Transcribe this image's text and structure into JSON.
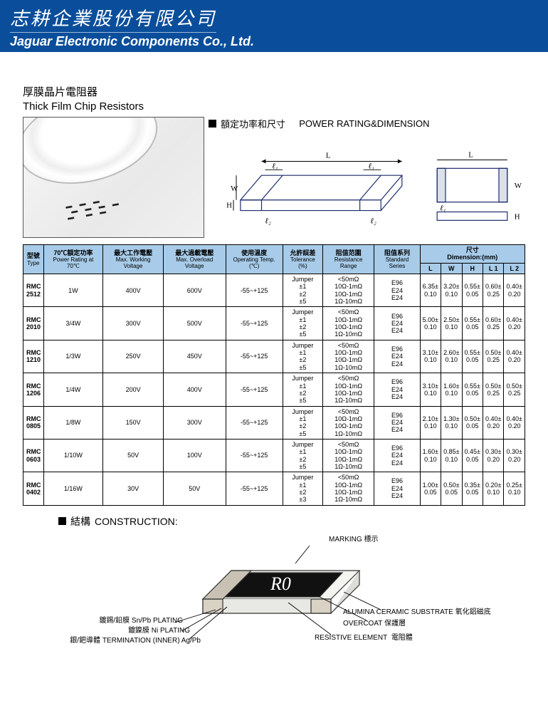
{
  "header": {
    "cn": "志耕企業股份有限公司",
    "en": "Jaguar Electronic Components Co., Ltd."
  },
  "product": {
    "title_cn": "厚膜晶片電阻器",
    "title_en": "Thick Film Chip Resistors"
  },
  "section_power": {
    "marker": "■",
    "cn": "額定功率和尺寸",
    "en": "POWER RATING&DIMENSION"
  },
  "section_construction": {
    "marker": "■",
    "cn": "結構",
    "en": "CONSTRUCTION:"
  },
  "dim_diagram": {
    "labels": {
      "L": "L",
      "W": "W",
      "H": "H",
      "l1": "ℓ₁",
      "l2": "ℓ₂"
    },
    "stroke": "#1a2a6c"
  },
  "table": {
    "headers": {
      "type": {
        "cn": "型號",
        "en": "Type"
      },
      "power": {
        "cn": "70℃額定功率",
        "en": "Power Rating at 70℃"
      },
      "maxwork": {
        "cn": "最大工作電壓",
        "en": "Max. Working Voltage"
      },
      "maxover": {
        "cn": "最大過載電壓",
        "en": "Max. Overload Voltage"
      },
      "temp": {
        "cn": "使用溫度",
        "en": "Operating Temp.(℃)"
      },
      "tol": {
        "cn": "允許誤差",
        "en": "Tolerance (%)"
      },
      "range": {
        "cn": "阻值范圍",
        "en": "Resistance Range"
      },
      "series": {
        "cn": "阻值系列",
        "en": "Standard Series"
      },
      "dim": {
        "cn": "尺寸",
        "en": "Dimension:(mm)"
      },
      "L": "L",
      "W": "W",
      "H": "H",
      "L1": "L 1",
      "L2": "L 2"
    },
    "tol_common": "Jumper\n±1\n±2\n±5",
    "range_common": "<50mΩ\n10Ω-1mΩ\n10Ω-1mΩ\n1Ω-10mΩ",
    "series_common": "E96\nE24\nE24",
    "rows": [
      {
        "type": "RMC 2512",
        "power": "1W",
        "mw": "400V",
        "mo": "600V",
        "temp": "-55~+125",
        "L": "6.35±\n0.10",
        "W": "3.20±\n0.10",
        "H": "0.55±\n0.05",
        "L1": "0.60±\n0.25",
        "L2": "0.40±\n0.20"
      },
      {
        "type": "RMC 2010",
        "power": "3/4W",
        "mw": "300V",
        "mo": "500V",
        "temp": "-55~+125",
        "L": "5.00±\n0.10",
        "W": "2.50±\n0.10",
        "H": "0.55±\n0.05",
        "L1": "0.60±\n0.25",
        "L2": "0.40±\n0.20"
      },
      {
        "type": "RMC 1210",
        "power": "1/3W",
        "mw": "250V",
        "mo": "450V",
        "temp": "-55~+125",
        "L": "3.10±\n0.10",
        "W": "2.60±\n0.10",
        "H": "0.55±\n0.05",
        "L1": "0.50±\n0.25",
        "L2": "0.40±\n0.20"
      },
      {
        "type": "RMC 1206",
        "power": "1/4W",
        "mw": "200V",
        "mo": "400V",
        "temp": "-55~+125",
        "L": "3.10±\n0.10",
        "W": "1.60±\n0.10",
        "H": "0.55±\n0.05",
        "L1": "0.50±\n0.25",
        "L2": "0.50±\n0.25"
      },
      {
        "type": "RMC 0805",
        "power": "1/8W",
        "mw": "150V",
        "mo": "300V",
        "temp": "-55~+125",
        "L": "2.10±\n0.10",
        "W": "1.30±\n0.10",
        "H": "0.50±\n0.05",
        "L1": "0.40±\n0.20",
        "L2": "0.40±\n0.20"
      },
      {
        "type": "RMC 0603",
        "power": "1/10W",
        "mw": "50V",
        "mo": "100V",
        "temp": "-55~+125",
        "L": "1.60±\n0.10",
        "W": "0.85±\n0.10",
        "H": "0.45±\n0.05",
        "L1": "0.30±\n0.20",
        "L2": "0.30±\n0.20"
      },
      {
        "type": "RMC 0402",
        "power": "1/16W",
        "mw": "30V",
        "mo": "50V",
        "temp": "-55~+125",
        "tol": "Jumper\n±1\n±2\n±3",
        "L": "1.00±\n0.05",
        "W": "0.50±\n0.05",
        "H": "0.35±\n0.05",
        "L1": "0.20±\n0.10",
        "L2": "0.25±\n0.10"
      }
    ]
  },
  "construction_labels": {
    "marking": {
      "en": "MARKING",
      "cn": "標示"
    },
    "snpb": {
      "cn": "鍍錫/鉛膜",
      "en": "Sn/Pb PLATING"
    },
    "ni": {
      "cn": "鍍鎳膜",
      "en": "Ni PLATING"
    },
    "term": {
      "cn": "銀/鈀導體",
      "en": "TERMINATION (INNER) Ag/Pb"
    },
    "alumina": {
      "en": "ALUMINA CERAMIC SUBSTRATE",
      "cn": "氧化鋁磁底"
    },
    "overcoat": {
      "en": "OVERCOAT",
      "cn": "保護層"
    },
    "resistive": {
      "en": "RESISTIVE ELEMENT",
      "cn": "電阻體"
    }
  },
  "colors": {
    "header_bg": "#0a4e9b",
    "table_header_bg": "#a7cbe8",
    "border": "#000000",
    "diagram_stroke": "#1a2a6c"
  }
}
